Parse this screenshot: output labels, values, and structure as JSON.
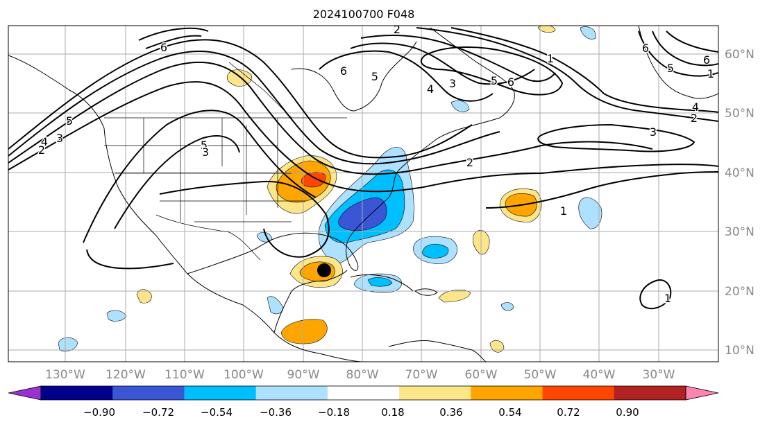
{
  "title": "2024100700 F048",
  "lon_labels": [
    "130°W",
    "120°W",
    "110°W",
    "100°W",
    "90°W",
    "80°W",
    "70°W",
    "60°W",
    "50°W",
    "40°W",
    "30°W"
  ],
  "lat_labels": [
    "60°N",
    "50°N",
    "40°N",
    "30°N",
    "20°N",
    "10°N"
  ],
  "contour_labels": [
    {
      "text": "6"
    },
    {
      "text": "5"
    },
    {
      "text": "4"
    },
    {
      "text": "3"
    },
    {
      "text": "2"
    },
    {
      "text": "5"
    },
    {
      "text": "3"
    },
    {
      "text": "6"
    },
    {
      "text": "5"
    },
    {
      "text": "4"
    },
    {
      "text": "3"
    },
    {
      "text": "5"
    },
    {
      "text": "6"
    },
    {
      "text": "1"
    },
    {
      "text": "2"
    },
    {
      "text": "1"
    },
    {
      "text": "6"
    },
    {
      "text": "5"
    },
    {
      "text": "6"
    },
    {
      "text": "4"
    },
    {
      "text": "2"
    },
    {
      "text": "3"
    },
    {
      "text": "1"
    },
    {
      "text": "2"
    },
    {
      "text": "1"
    }
  ],
  "colorbar": {
    "colors": [
      "#9b30d0",
      "#00008b",
      "#3a56d4",
      "#00bfff",
      "#aee0ff",
      "#ffffff",
      "#fde68a",
      "#ffa500",
      "#ff4500",
      "#b22222",
      "#ff85b0"
    ],
    "tick_labels": [
      "−0.90",
      "−0.72",
      "−0.54",
      "−0.36",
      "−0.18",
      "0.18",
      "0.36",
      "0.54",
      "0.72",
      "0.90"
    ]
  },
  "storm_marker": {
    "name": "storm-center",
    "lon": -86.3,
    "lat": 23.2
  }
}
